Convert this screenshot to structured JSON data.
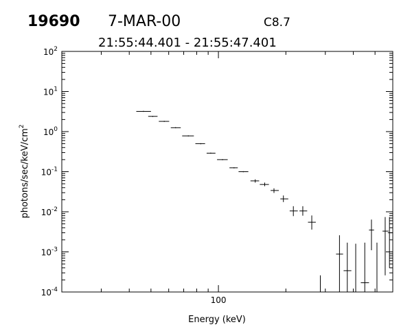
{
  "header": {
    "id": "19690",
    "date": "7-MAR-00",
    "flare_class": "C8.7",
    "time_range": "21:55:44.401 - 21:55:47.401"
  },
  "chart_data": {
    "type": "scatter",
    "title": "",
    "xlabel": "Energy (keV)",
    "ylabel": "photons/sec/keV/cm",
    "ylabel_sup": "2",
    "xscale": "log",
    "yscale": "log",
    "xlim": [
      20,
      600
    ],
    "ylim": [
      0.0001,
      100
    ],
    "x_tick_labels": [
      {
        "value": 100,
        "text": "100"
      }
    ],
    "y_tick_labels": [
      {
        "value": 100,
        "base": "10",
        "exp": "2"
      },
      {
        "value": 10,
        "base": "10",
        "exp": "1"
      },
      {
        "value": 1,
        "base": "10",
        "exp": "0"
      },
      {
        "value": 0.1,
        "base": "10",
        "exp": "-1"
      },
      {
        "value": 0.01,
        "base": "10",
        "exp": "-2"
      },
      {
        "value": 0.001,
        "base": "10",
        "exp": "-3"
      },
      {
        "value": 0.0001,
        "base": "10",
        "exp": "-4"
      }
    ],
    "grid": false,
    "series": [
      {
        "points": [
          {
            "x": 46.3,
            "xlo": 43.0,
            "xhi": 50.0,
            "y": 3.2
          },
          {
            "x": 50.9,
            "xlo": 48.6,
            "xhi": 53.5,
            "y": 2.4
          },
          {
            "x": 57.3,
            "xlo": 54.2,
            "xhi": 60.3,
            "y": 1.8
          },
          {
            "x": 64.4,
            "xlo": 61.3,
            "xhi": 67.9,
            "y": 1.25
          },
          {
            "x": 73.4,
            "xlo": 68.9,
            "xhi": 77.7,
            "y": 0.78
          },
          {
            "x": 83.4,
            "xlo": 78.9,
            "xhi": 87.2,
            "y": 0.5
          },
          {
            "x": 92.4,
            "xlo": 88.6,
            "xhi": 97.0,
            "y": 0.29
          },
          {
            "x": 104.3,
            "xlo": 98.6,
            "xhi": 110.0,
            "y": 0.2
          },
          {
            "x": 117.4,
            "xlo": 112.0,
            "xhi": 122.0,
            "y": 0.125
          },
          {
            "x": 129.1,
            "xlo": 123.0,
            "xhi": 136.0,
            "y": 0.1
          },
          {
            "x": 146.0,
            "xlo": 139.0,
            "xhi": 152.0,
            "y": 0.059,
            "yerr_lo": 0.0535,
            "yerr_hi": 0.0645
          },
          {
            "x": 160.9,
            "xlo": 153.0,
            "xhi": 168.0,
            "y": 0.048,
            "yerr_lo": 0.0435,
            "yerr_hi": 0.0535
          },
          {
            "x": 177.0,
            "xlo": 171.0,
            "xhi": 186.0,
            "y": 0.034,
            "yerr_lo": 0.0295,
            "yerr_hi": 0.0385
          },
          {
            "x": 195.0,
            "xlo": 189.0,
            "xhi": 205.0,
            "y": 0.021,
            "yerr_lo": 0.0175,
            "yerr_hi": 0.0255
          },
          {
            "x": 216.0,
            "xlo": 208.0,
            "xhi": 226.0,
            "y": 0.0105,
            "yerr_lo": 0.0078,
            "yerr_hi": 0.0138
          },
          {
            "x": 238.0,
            "xlo": 230.0,
            "xhi": 249.0,
            "y": 0.0105,
            "yerr_lo": 0.008,
            "yerr_hi": 0.0138
          },
          {
            "x": 261.0,
            "xlo": 251.0,
            "xhi": 272.0,
            "y": 0.0055,
            "yerr_lo": 0.0036,
            "yerr_hi": 0.0081
          },
          {
            "x": 347.0,
            "xlo": 335.0,
            "xhi": 360.0,
            "y": 0.00088,
            "yerr_lo": 0.0001,
            "yerr_hi": 0.0026
          },
          {
            "x": 376.0,
            "xlo": 362.0,
            "xhi": 392.0,
            "y": 0.00034,
            "yerr_lo": 0.0001,
            "yerr_hi": 0.0017
          },
          {
            "x": 450.0,
            "xlo": 432.0,
            "xhi": 470.0,
            "y": 0.00017,
            "yerr_lo": 0.0001,
            "yerr_hi": 0.0017
          },
          {
            "x": 482.0,
            "xlo": 470.0,
            "xhi": 495.0,
            "y": 0.0035,
            "yerr_lo": 0.0011,
            "yerr_hi": 0.0064
          },
          {
            "x": 555.0,
            "xlo": 540.0,
            "xhi": 575.0,
            "y": 0.0033,
            "yerr_lo": 0.00026,
            "yerr_hi": 0.0074
          },
          {
            "x": 580.0,
            "xlo": 570.0,
            "xhi": 600.0,
            "y": 0.003,
            "yerr_lo": 0.0004,
            "yerr_hi": 0.0074
          }
        ]
      }
    ],
    "upper_error_bars": [
      {
        "x": 285,
        "y_top": 0.00026
      },
      {
        "x": 410,
        "y_top": 0.0016
      },
      {
        "x": 510,
        "y_top": 0.0017
      }
    ]
  }
}
